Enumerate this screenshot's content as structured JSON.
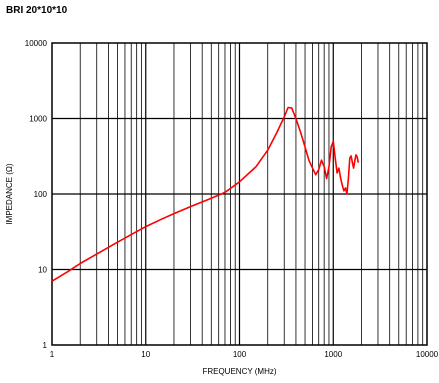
{
  "chart_data": {
    "type": "line",
    "title": "BRI 20*10*10",
    "xlabel": "FREQUENCY (MHz)",
    "ylabel": "IMPEDANCE (Ω)",
    "x_scale": "log",
    "y_scale": "log",
    "xlim": [
      1,
      10000
    ],
    "ylim": [
      1,
      10000
    ],
    "x_ticks": [
      1,
      10,
      100,
      1000,
      10000
    ],
    "x_tick_labels": [
      "1",
      "10",
      "100",
      "1000",
      "10000"
    ],
    "y_ticks": [
      1,
      10,
      100,
      1000,
      10000
    ],
    "y_tick_labels": [
      "1",
      "10",
      "100",
      "1000",
      "10000"
    ],
    "grid": true,
    "line_color": "#ff0000",
    "series": [
      {
        "x": [
          1,
          1.5,
          2,
          3,
          5,
          7,
          10,
          15,
          20,
          30,
          50,
          70,
          100,
          150,
          200,
          250,
          300,
          330,
          360,
          400,
          450,
          500,
          550,
          600,
          650,
          700,
          750,
          800,
          850,
          900,
          950,
          1000,
          1050,
          1100,
          1150,
          1200,
          1250,
          1300,
          1350,
          1400,
          1450,
          1500,
          1550,
          1600,
          1650,
          1700,
          1750,
          1800,
          1850
        ],
        "y": [
          7,
          9.5,
          12,
          16,
          23,
          29,
          37,
          47,
          55,
          68,
          88,
          105,
          145,
          230,
          380,
          650,
          1050,
          1400,
          1380,
          1000,
          650,
          420,
          280,
          220,
          180,
          210,
          280,
          230,
          160,
          230,
          420,
          500,
          300,
          190,
          220,
          160,
          130,
          110,
          120,
          100,
          160,
          300,
          320,
          260,
          220,
          280,
          330,
          310,
          260
        ]
      }
    ]
  }
}
